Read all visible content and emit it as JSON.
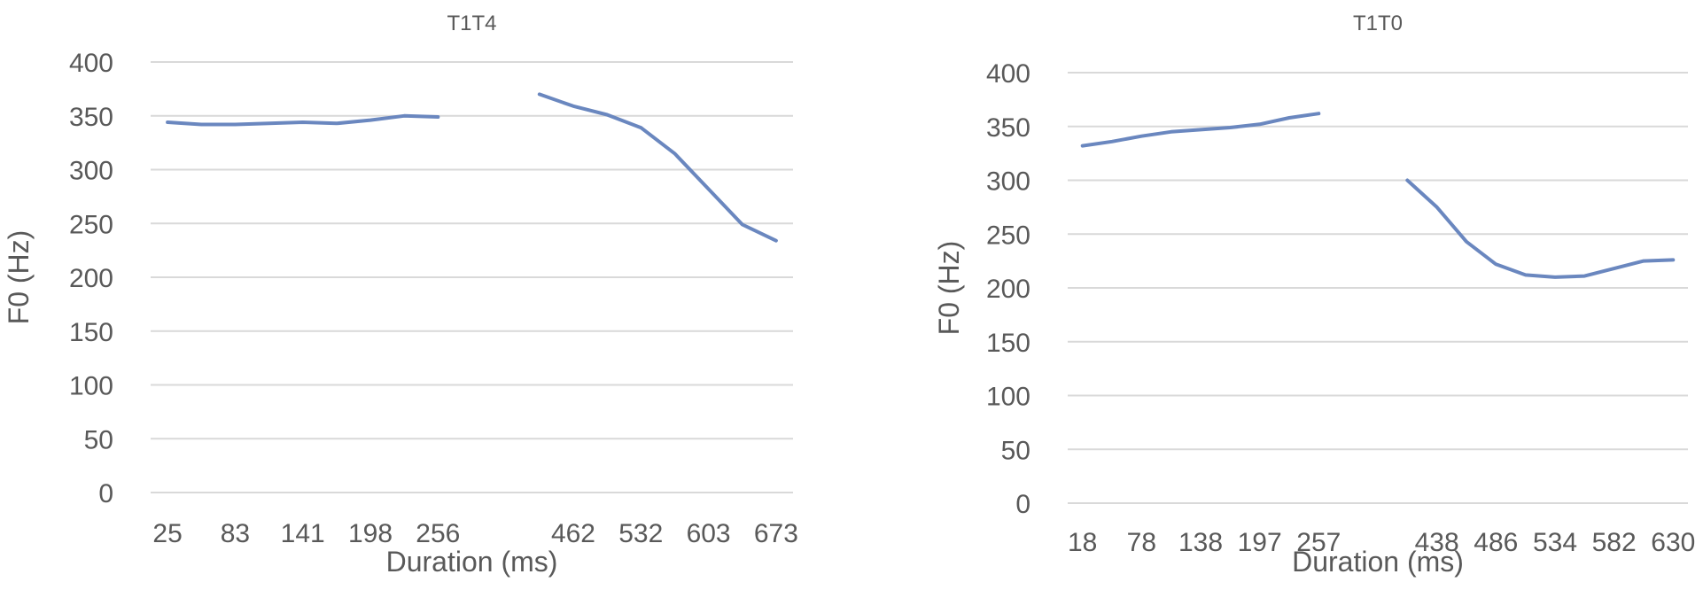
{
  "chart_data": [
    {
      "type": "line",
      "title": "T1T4",
      "xlabel": "Duration (ms)",
      "ylabel": "F0 (Hz)",
      "ylim": [
        0,
        400
      ],
      "yticks": [
        0,
        50,
        100,
        150,
        200,
        250,
        300,
        350,
        400
      ],
      "grid": true,
      "categories": [
        "25",
        "",
        "83",
        "",
        "141",
        "",
        "198",
        "",
        "256",
        "",
        "",
        "",
        "462",
        "",
        "532",
        "",
        "603",
        "",
        "673"
      ],
      "series": [
        {
          "color": "#6a87bf",
          "values": [
            344,
            342,
            342,
            343,
            344,
            343,
            346,
            350,
            349,
            null,
            null,
            370,
            359,
            351,
            339,
            315,
            282,
            249,
            234
          ]
        }
      ]
    },
    {
      "type": "line",
      "title": "T1T0",
      "xlabel": "Duration (ms)",
      "ylabel": "F0 (Hz)",
      "ylim": [
        0,
        400
      ],
      "yticks": [
        0,
        50,
        100,
        150,
        200,
        250,
        300,
        350,
        400
      ],
      "grid": true,
      "categories": [
        "18",
        "",
        "78",
        "",
        "138",
        "",
        "197",
        "",
        "257",
        "",
        "",
        "",
        "438",
        "",
        "486",
        "",
        "534",
        "",
        "582",
        "",
        "630"
      ],
      "series": [
        {
          "color": "#6a87bf",
          "values": [
            332,
            336,
            341,
            345,
            347,
            349,
            352,
            358,
            362,
            null,
            null,
            300,
            275,
            243,
            222,
            212,
            210,
            211,
            218,
            225,
            226
          ]
        }
      ]
    }
  ]
}
